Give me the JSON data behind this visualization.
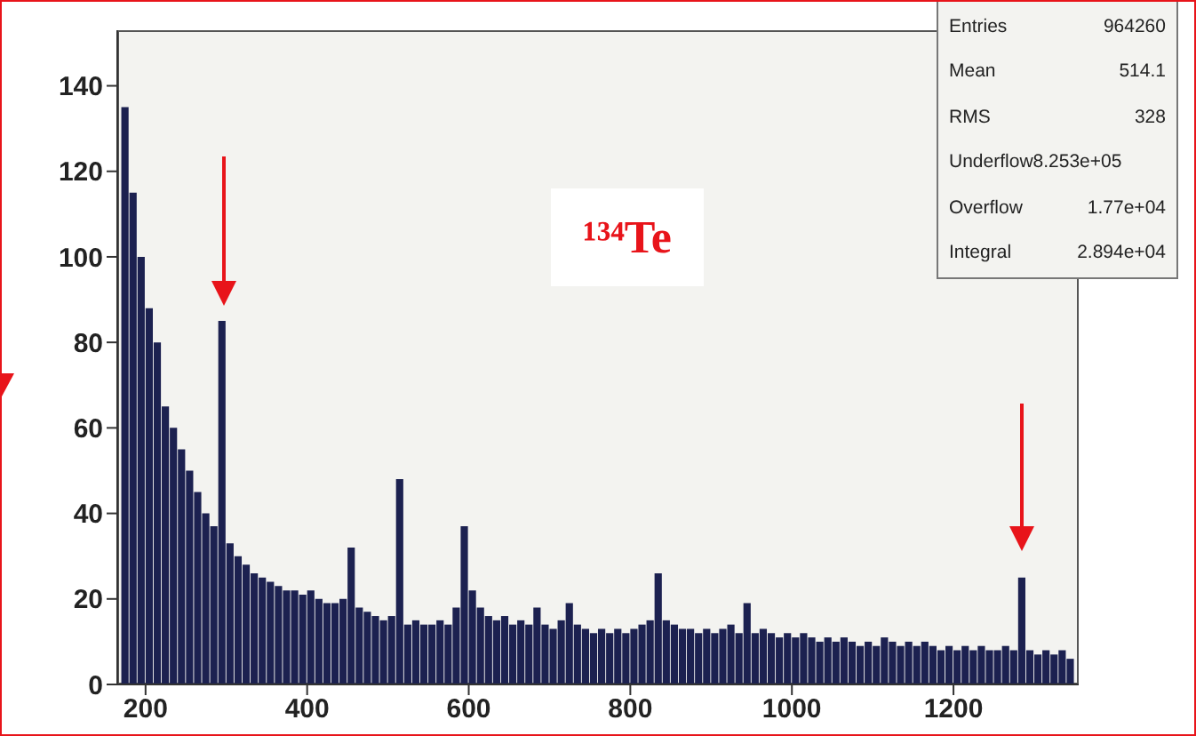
{
  "chart_data": {
    "type": "histogram",
    "bins": [
      170,
      180,
      190,
      200,
      210,
      220,
      230,
      240,
      250,
      260,
      270,
      280,
      290,
      300,
      310,
      320,
      330,
      340,
      350,
      360,
      370,
      380,
      390,
      400,
      410,
      420,
      430,
      440,
      450,
      460,
      470,
      480,
      490,
      500,
      510,
      520,
      530,
      540,
      550,
      560,
      570,
      580,
      590,
      600,
      610,
      620,
      630,
      640,
      650,
      660,
      670,
      680,
      690,
      700,
      710,
      720,
      730,
      740,
      750,
      760,
      770,
      780,
      790,
      800,
      810,
      820,
      830,
      840,
      850,
      860,
      870,
      880,
      890,
      900,
      910,
      920,
      930,
      940,
      950,
      960,
      970,
      980,
      990,
      1000,
      1010,
      1020,
      1030,
      1040,
      1050,
      1060,
      1070,
      1080,
      1090,
      1100,
      1110,
      1120,
      1130,
      1140,
      1150,
      1160,
      1170,
      1180,
      1190,
      1200,
      1210,
      1220,
      1230,
      1240,
      1250,
      1260,
      1270,
      1280,
      1290,
      1300,
      1310,
      1320,
      1330,
      1340,
      1350
    ],
    "values": [
      135,
      115,
      100,
      88,
      80,
      65,
      60,
      55,
      50,
      45,
      40,
      37,
      85,
      33,
      30,
      28,
      26,
      25,
      24,
      23,
      22,
      22,
      21,
      22,
      20,
      19,
      19,
      20,
      32,
      18,
      17,
      16,
      15,
      16,
      48,
      14,
      15,
      14,
      14,
      15,
      14,
      18,
      37,
      22,
      18,
      16,
      15,
      16,
      14,
      15,
      14,
      18,
      14,
      13,
      15,
      19,
      14,
      13,
      12,
      13,
      12,
      13,
      12,
      13,
      14,
      15,
      26,
      15,
      14,
      13,
      13,
      12,
      13,
      12,
      13,
      14,
      12,
      19,
      12,
      13,
      12,
      11,
      12,
      11,
      12,
      11,
      10,
      11,
      10,
      11,
      10,
      9,
      10,
      9,
      11,
      10,
      9,
      10,
      9,
      10,
      9,
      8,
      9,
      8,
      9,
      8,
      9,
      8,
      8,
      9,
      8,
      25,
      8,
      7,
      8,
      7,
      8,
      6
    ],
    "color": "#1c2150",
    "xlim": [
      165,
      1355
    ],
    "xticks": [
      200,
      400,
      600,
      800,
      1000,
      1200
    ],
    "ylim": [
      0,
      153
    ],
    "yticks": [
      0,
      20,
      40,
      60,
      80,
      100,
      120,
      140
    ],
    "annotations": [
      "¹³⁴Te",
      "Entries 964260",
      "Mean 514.1",
      "RMS 328",
      "Underflow8.253e+05",
      "Overflow 1.77e+04",
      "Integral 2.894e+04"
    ]
  }
}
